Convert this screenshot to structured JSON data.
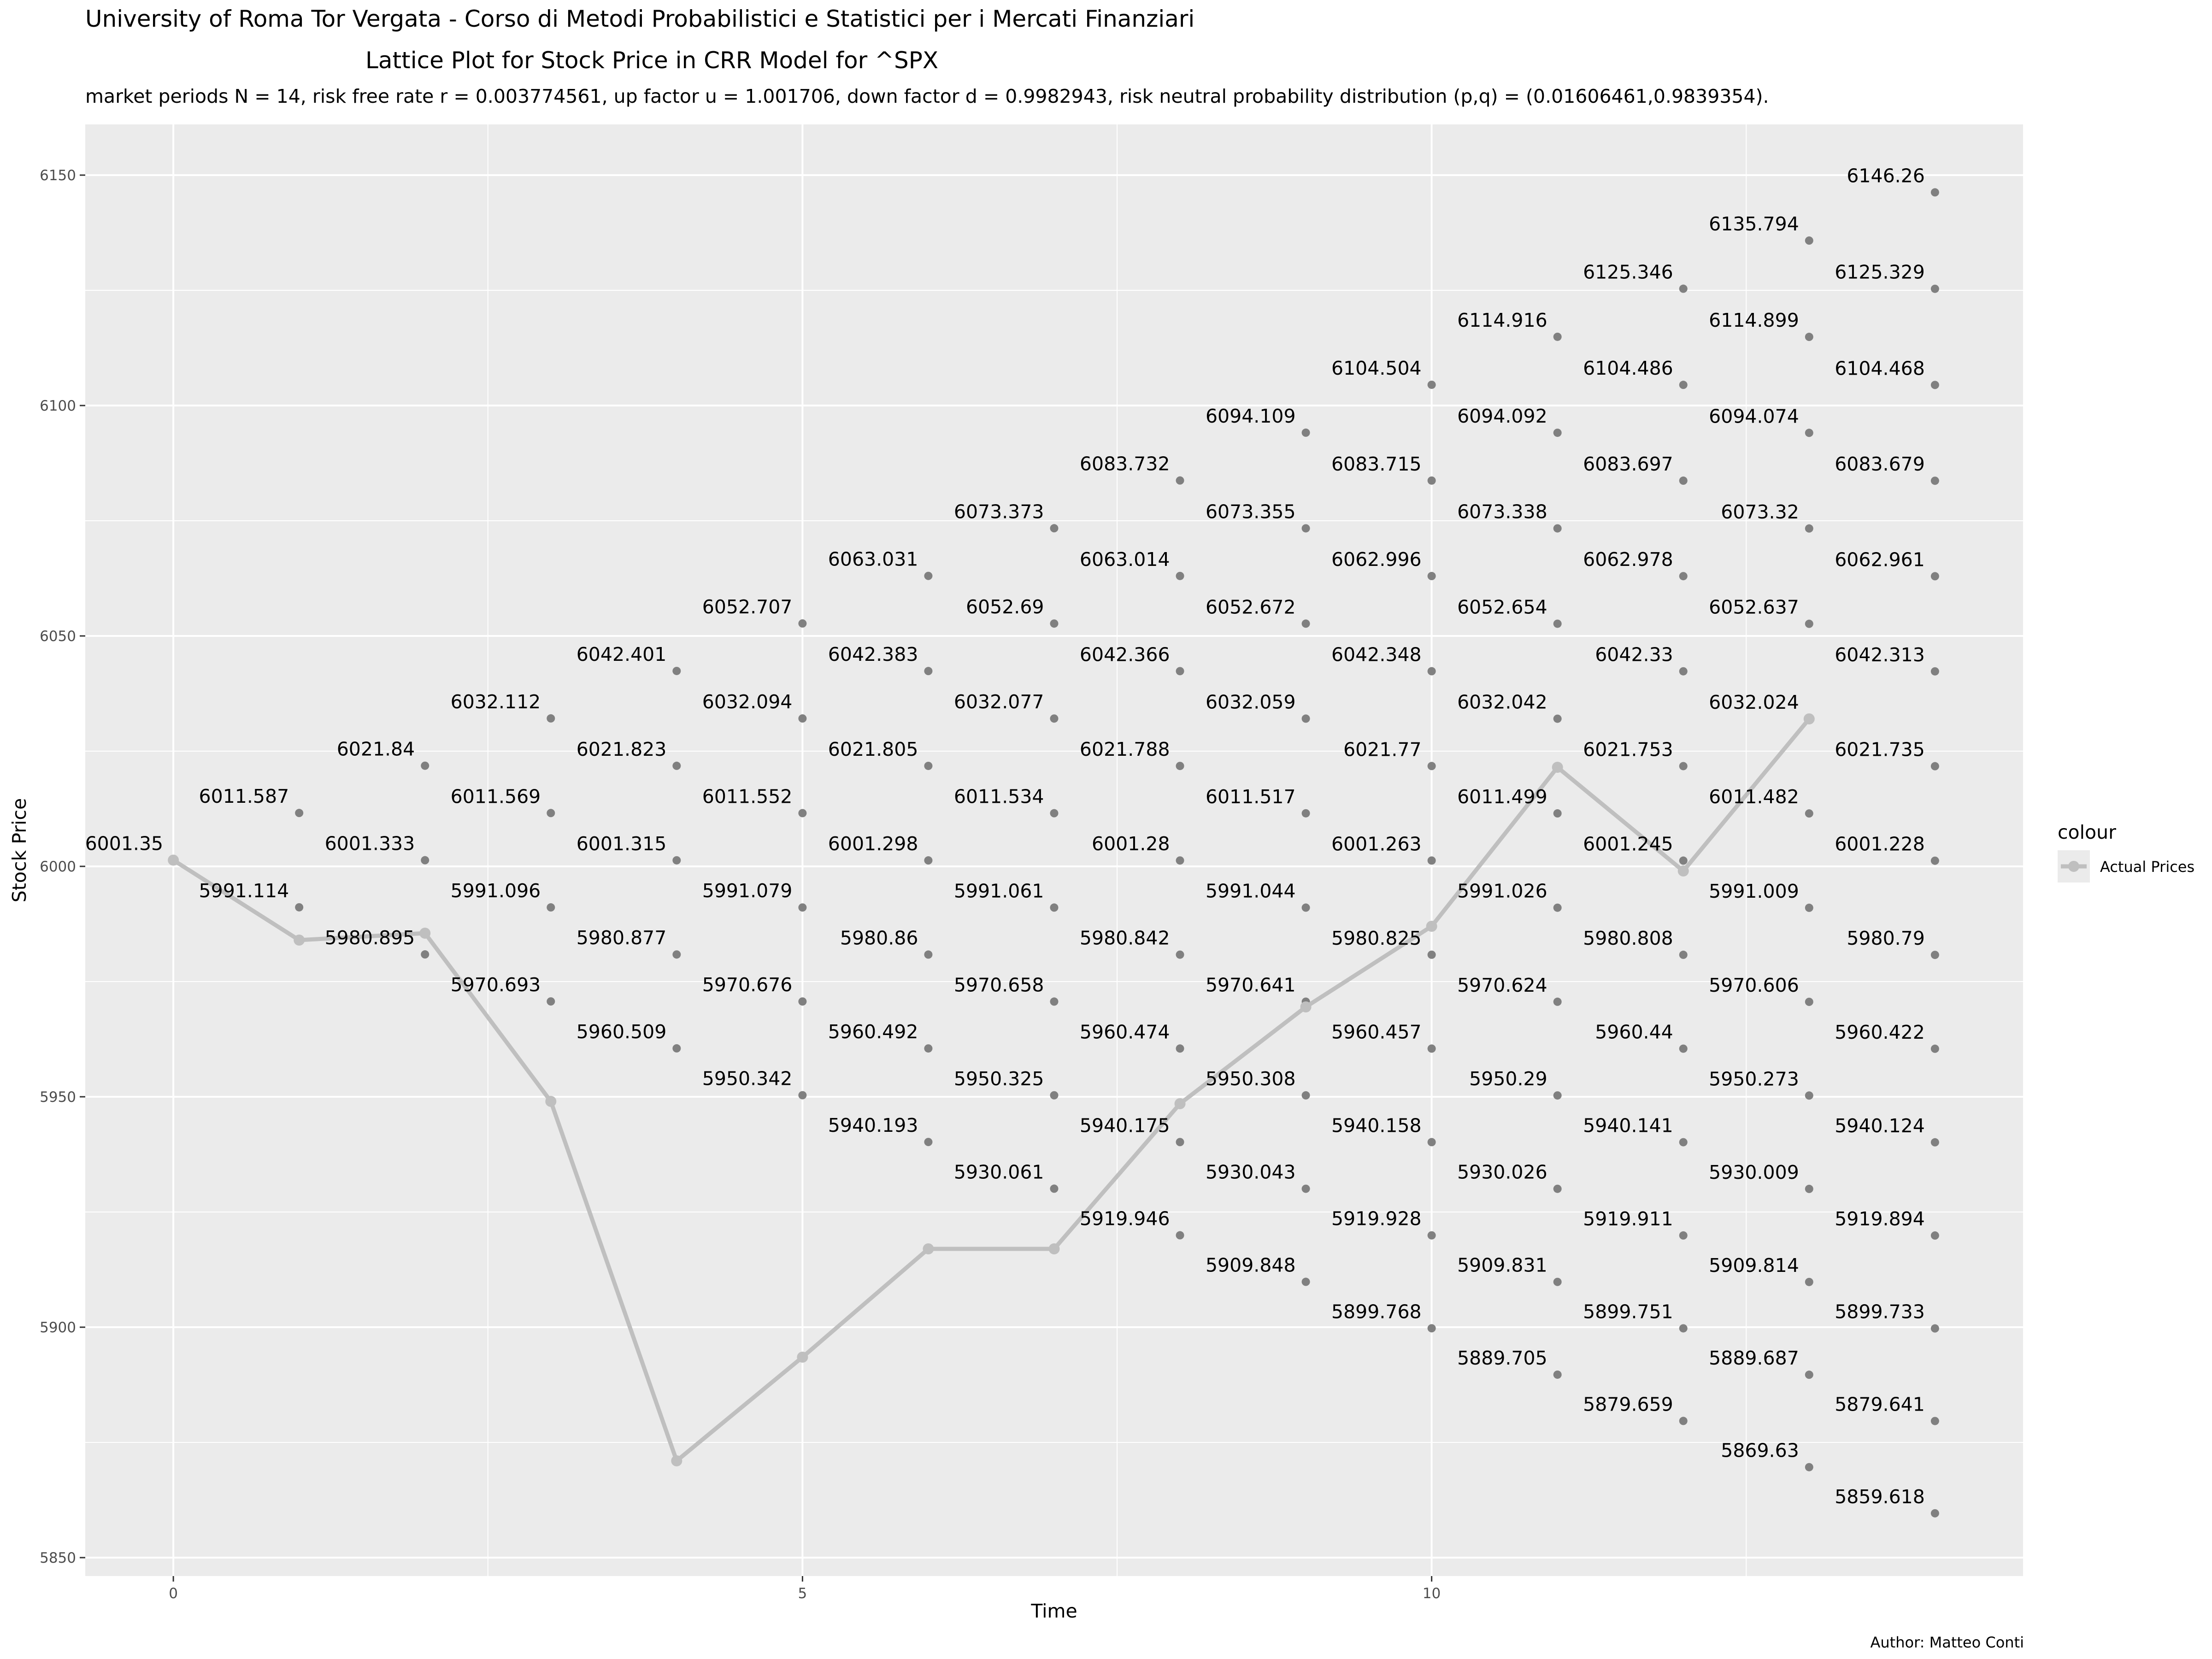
{
  "title_line1": "University of Roma Tor Vergata - Corso di Metodi Probabilistici e Statistici per i Mercati Finanziari",
  "title_line2": "Lattice Plot for Stock Price in CRR Model for  ^SPX",
  "subtitle": "market periods N = 14, risk free rate r = 0.003774561, up factor u = 1.001706, down factor d = 0.9982943, risk neutral probability distribution (p,q) = (0.01606461,0.9839354).",
  "caption": "Author: Matteo Conti",
  "colors": {
    "panel_bg": "#ebebeb",
    "grid": "#ffffff",
    "node": "#808080",
    "actual": "#bfbfbf"
  },
  "chart_data": {
    "type": "scatter",
    "xlabel": "Time",
    "ylabel": "Stock Price",
    "xlim": [
      -0.7,
      14.7
    ],
    "ylim": [
      5846,
      6161
    ],
    "x_ticks": [
      0,
      5,
      10
    ],
    "y_ticks": [
      5850,
      5900,
      5950,
      6000,
      6050,
      6100,
      6150
    ],
    "grid": true,
    "legend": {
      "title": "colour",
      "position": "right",
      "entries": [
        "Actual Prices"
      ]
    },
    "lattice_nodes": [
      {
        "t": 0,
        "values": [
          "6001.35"
        ]
      },
      {
        "t": 1,
        "values": [
          "6011.587",
          "5991.114"
        ]
      },
      {
        "t": 2,
        "values": [
          "6021.84",
          "6001.333",
          "5980.895"
        ]
      },
      {
        "t": 3,
        "values": [
          "6032.112",
          "6011.569",
          "5991.096",
          "5970.693"
        ]
      },
      {
        "t": 4,
        "values": [
          "6042.401",
          "6021.823",
          "6001.315",
          "5980.877",
          "5960.509"
        ]
      },
      {
        "t": 5,
        "values": [
          "6052.707",
          "6032.094",
          "6011.552",
          "5991.079",
          "5970.676",
          "5950.342"
        ]
      },
      {
        "t": 6,
        "values": [
          "6063.031",
          "6042.383",
          "6021.805",
          "6001.298",
          "5980.86",
          "5960.492",
          "5940.193"
        ]
      },
      {
        "t": 7,
        "values": [
          "6073.373",
          "6052.69",
          "6032.077",
          "6011.534",
          "5991.061",
          "5970.658",
          "5950.325",
          "5930.061"
        ]
      },
      {
        "t": 8,
        "values": [
          "6083.732",
          "6063.014",
          "6042.366",
          "6021.788",
          "6001.28",
          "5980.842",
          "5960.474",
          "5940.175",
          "5919.946"
        ]
      },
      {
        "t": 9,
        "values": [
          "6094.109",
          "6073.355",
          "6052.672",
          "6032.059",
          "6011.517",
          "5991.044",
          "5970.641",
          "5950.308",
          "5930.043",
          "5909.848"
        ]
      },
      {
        "t": 10,
        "values": [
          "6104.504",
          "6083.715",
          "6062.996",
          "6042.348",
          "6021.77",
          "6001.263",
          "5980.825",
          "5960.457",
          "5940.158",
          "5919.928",
          "5899.768"
        ]
      },
      {
        "t": 11,
        "values": [
          "6114.916",
          "6094.092",
          "6073.338",
          "6052.654",
          "6032.042",
          "6011.499",
          "5991.026",
          "5970.624",
          "5950.29",
          "5930.026",
          "5909.831",
          "5889.705"
        ]
      },
      {
        "t": 12,
        "values": [
          "6125.346",
          "6104.486",
          "6083.697",
          "6062.978",
          "6042.33",
          "6021.753",
          "6001.245",
          "5980.808",
          "5960.44",
          "5940.141",
          "5919.911",
          "5899.751",
          "5879.659"
        ]
      },
      {
        "t": 13,
        "values": [
          "6135.794",
          "6114.899",
          "6094.074",
          "6073.32",
          "6052.637",
          "6032.024",
          "6011.482",
          "5991.009",
          "5970.606",
          "5950.273",
          "5930.009",
          "5909.814",
          "5889.687",
          "5869.63"
        ]
      },
      {
        "t": 14,
        "values": [
          "6146.26",
          "6125.329",
          "6104.468",
          "6083.679",
          "6062.961",
          "6042.313",
          "6021.735",
          "6001.228",
          "5980.79",
          "5960.422",
          "5940.124",
          "5919.894",
          "5899.733",
          "5879.641",
          "5859.618"
        ]
      }
    ],
    "series": [
      {
        "name": "Actual Prices",
        "x": [
          0,
          1,
          2,
          3,
          4,
          5,
          6,
          7,
          8,
          9,
          10,
          11,
          12,
          13
        ],
        "y": [
          6001.35,
          5984,
          5985.5,
          5949,
          5871,
          5893.5,
          5917,
          5917,
          5948.5,
          5969.5,
          5987,
          6021.5,
          5999,
          6032
        ]
      }
    ]
  }
}
